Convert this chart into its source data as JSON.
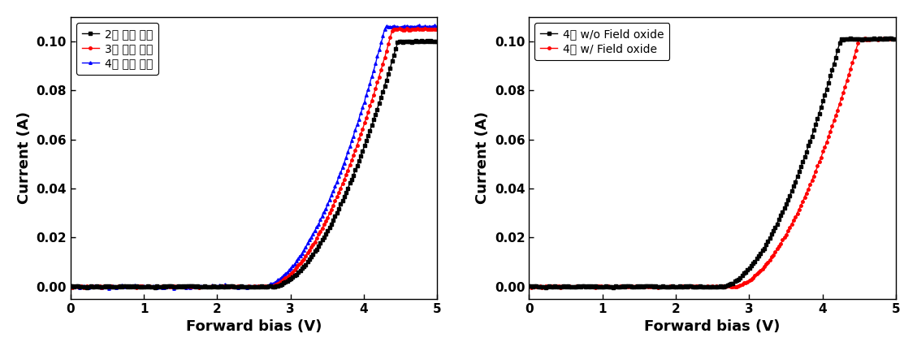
{
  "left_chart": {
    "xlabel": "Forward bias (V)",
    "ylabel": "Current (A)",
    "xlim": [
      0,
      5
    ],
    "ylim": [
      -0.005,
      0.11
    ],
    "yticks": [
      0.0,
      0.02,
      0.04,
      0.06,
      0.08,
      0.1
    ],
    "xticks": [
      0,
      1,
      2,
      3,
      4,
      5
    ],
    "series": [
      {
        "label": "2차 측정 결과",
        "color": "#000000",
        "marker": "s",
        "turn_on": 2.75,
        "n_factor": 1.8,
        "i_sat": 0.038,
        "clamp": 0.1,
        "noise_amp": 0.00015
      },
      {
        "label": "3차 측정 결과",
        "color": "#ff0000",
        "marker": "o",
        "turn_on": 2.68,
        "n_factor": 1.8,
        "i_sat": 0.04,
        "clamp": 0.105,
        "noise_amp": 0.00015
      },
      {
        "label": "4차 측정 결과",
        "color": "#0000ff",
        "marker": "^",
        "turn_on": 2.62,
        "n_factor": 1.8,
        "i_sat": 0.042,
        "clamp": 0.106,
        "noise_amp": 0.00025
      }
    ]
  },
  "right_chart": {
    "xlabel": "Forward bias (V)",
    "ylabel": "Current (A)",
    "xlim": [
      0,
      5
    ],
    "ylim": [
      -0.005,
      0.11
    ],
    "yticks": [
      0.0,
      0.02,
      0.04,
      0.06,
      0.08,
      0.1
    ],
    "xticks": [
      0,
      1,
      2,
      3,
      4,
      5
    ],
    "series": [
      {
        "label": "4차 w/o Field oxide",
        "color": "#000000",
        "marker": "s",
        "turn_on": 2.62,
        "n_factor": 1.8,
        "i_sat": 0.042,
        "clamp": 0.101,
        "noise_amp": 0.00015
      },
      {
        "label": "4차 w/ Field oxide",
        "color": "#ff0000",
        "marker": "o",
        "turn_on": 2.78,
        "n_factor": 1.8,
        "i_sat": 0.038,
        "clamp": 0.101,
        "noise_amp": 0.00015
      }
    ]
  },
  "figsize": [
    11.29,
    4.32
  ],
  "dpi": 100,
  "font_size_label": 13,
  "font_size_tick": 11,
  "font_size_legend": 10,
  "linewidth": 1.0,
  "markersize": 2.5,
  "markevery": 3
}
